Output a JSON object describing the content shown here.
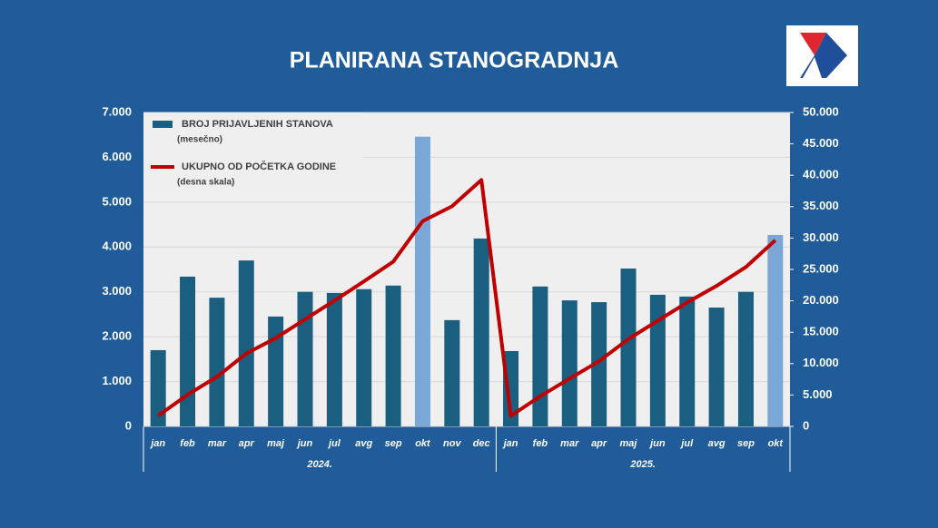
{
  "chart_data": {
    "type": "bar-line",
    "title": "PLANIRANA STANOGRADNJA",
    "category_groups": [
      {
        "name": "2024.",
        "categories": [
          "jan",
          "feb",
          "mar",
          "apr",
          "maj",
          "jun",
          "jul",
          "avg",
          "sep",
          "okt",
          "nov",
          "dec"
        ]
      },
      {
        "name": "2025.",
        "categories": [
          "jan",
          "feb",
          "mar",
          "apr",
          "maj",
          "jun",
          "jul",
          "avg",
          "sep",
          "okt"
        ]
      }
    ],
    "series": [
      {
        "name": "BROJ PRIJAVLJENIH STANOVA",
        "note": "(mesečno)",
        "type": "bar",
        "color": "#1a5e80",
        "colors": [
          "#1a5e80",
          "#1a5e80",
          "#1a5e80",
          "#1a5e80",
          "#1a5e80",
          "#1a5e80",
          "#1a5e80",
          "#1a5e80",
          "#1a5e80",
          "#7ba7d7",
          "#1a5e80",
          "#1a5e80",
          "#1a5e80",
          "#1a5e80",
          "#1a5e80",
          "#1a5e80",
          "#1a5e80",
          "#1a5e80",
          "#1a5e80",
          "#1a5e80",
          "#1a5e80",
          "#7ba7d7"
        ],
        "values": [
          1700,
          3340,
          2870,
          3700,
          2450,
          3000,
          2975,
          3060,
          3140,
          6460,
          2370,
          4190,
          1680,
          3120,
          2810,
          2770,
          3520,
          2935,
          2895,
          2650,
          3000,
          4270
        ]
      },
      {
        "name": "UKUPNO OD POČETKA GODINE",
        "note": "(desna skala)",
        "type": "line",
        "axis": "y2",
        "color": "#c00000",
        "values": [
          1700,
          5040,
          7910,
          11610,
          14060,
          17060,
          20035,
          23095,
          26235,
          32695,
          35065,
          39255,
          1680,
          4800,
          7610,
          10380,
          13900,
          16835,
          19730,
          22380,
          25380,
          29650
        ]
      }
    ],
    "ylim": [
      0,
      7000
    ],
    "yticks": [
      0,
      {
        "value": 1000,
        "label": "1.000"
      },
      {
        "value": 2000,
        "label": "2.000"
      },
      {
        "value": 3000,
        "label": "3.000"
      },
      {
        "value": 4000,
        "label": "4.000"
      },
      {
        "value": 5000,
        "label": "5.000"
      },
      {
        "value": 6000,
        "label": "6.000"
      },
      {
        "value": 7000,
        "label": "7.000"
      }
    ],
    "y2lim": [
      0,
      50000
    ],
    "y2ticks": [
      0,
      {
        "value": 5000,
        "label": "5.000"
      },
      {
        "value": 10000,
        "label": "10.000"
      },
      {
        "value": 15000,
        "label": "15.000"
      },
      {
        "value": 20000,
        "label": "20.000"
      },
      {
        "value": 25000,
        "label": "25.000"
      },
      {
        "value": 30000,
        "label": "30.000"
      },
      {
        "value": 35000,
        "label": "35.000"
      },
      {
        "value": 40000,
        "label": "40.000"
      },
      {
        "value": 45000,
        "label": "45.000"
      },
      {
        "value": 50000,
        "label": "50.000"
      }
    ],
    "grid": true
  }
}
